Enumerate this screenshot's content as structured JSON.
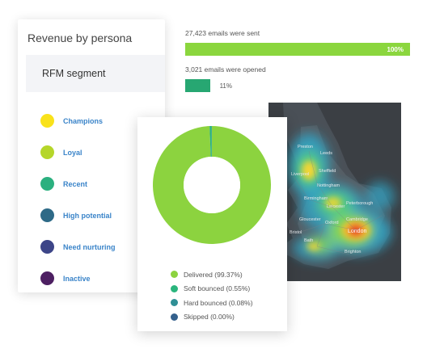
{
  "persona": {
    "title": "Revenue by persona",
    "segment_header": "RFM segment",
    "segments": [
      {
        "label": "Champions",
        "color": "#f9e21b"
      },
      {
        "label": "Loyal",
        "color": "#b5d62a"
      },
      {
        "label": "Recent",
        "color": "#2bb07f"
      },
      {
        "label": "High potential",
        "color": "#2e6a87"
      },
      {
        "label": "Need nurturing",
        "color": "#3d4588"
      },
      {
        "label": "Inactive",
        "color": "#4d1f62"
      }
    ]
  },
  "emails": {
    "sent_label": "27,423 emails were sent",
    "sent_percent": "100%",
    "sent_fraction": 1.0,
    "sent_color": "#8bd63e",
    "opened_label": "3,021 emails were opened",
    "opened_percent": "11%",
    "opened_fraction": 0.11,
    "opened_color": "#27a772"
  },
  "map": {
    "place_labels": [
      "Leeds",
      "Preston",
      "Sheffield",
      "Liverpool",
      "Nottingham",
      "Birmingham",
      "Peterborough",
      "Leicester",
      "Cambridge",
      "Oxford",
      "London",
      "Bath",
      "Bristol",
      "Gloucester",
      "Brighton"
    ]
  },
  "chart_data": {
    "type": "pie",
    "categories": [
      "Delivered",
      "Soft bounced",
      "Hard bounced",
      "Skipped"
    ],
    "values": [
      99.37,
      0.55,
      0.08,
      0.0
    ],
    "colors": [
      "#8cd33f",
      "#2ab57d",
      "#2f8f95",
      "#34608c"
    ],
    "legend_labels": [
      "Delivered (99.37%)",
      "Soft bounced (0.55%)",
      "Hard bounced (0.08%)",
      "Skipped (0.00%)"
    ],
    "legend_position": "bottom",
    "donut": true
  }
}
